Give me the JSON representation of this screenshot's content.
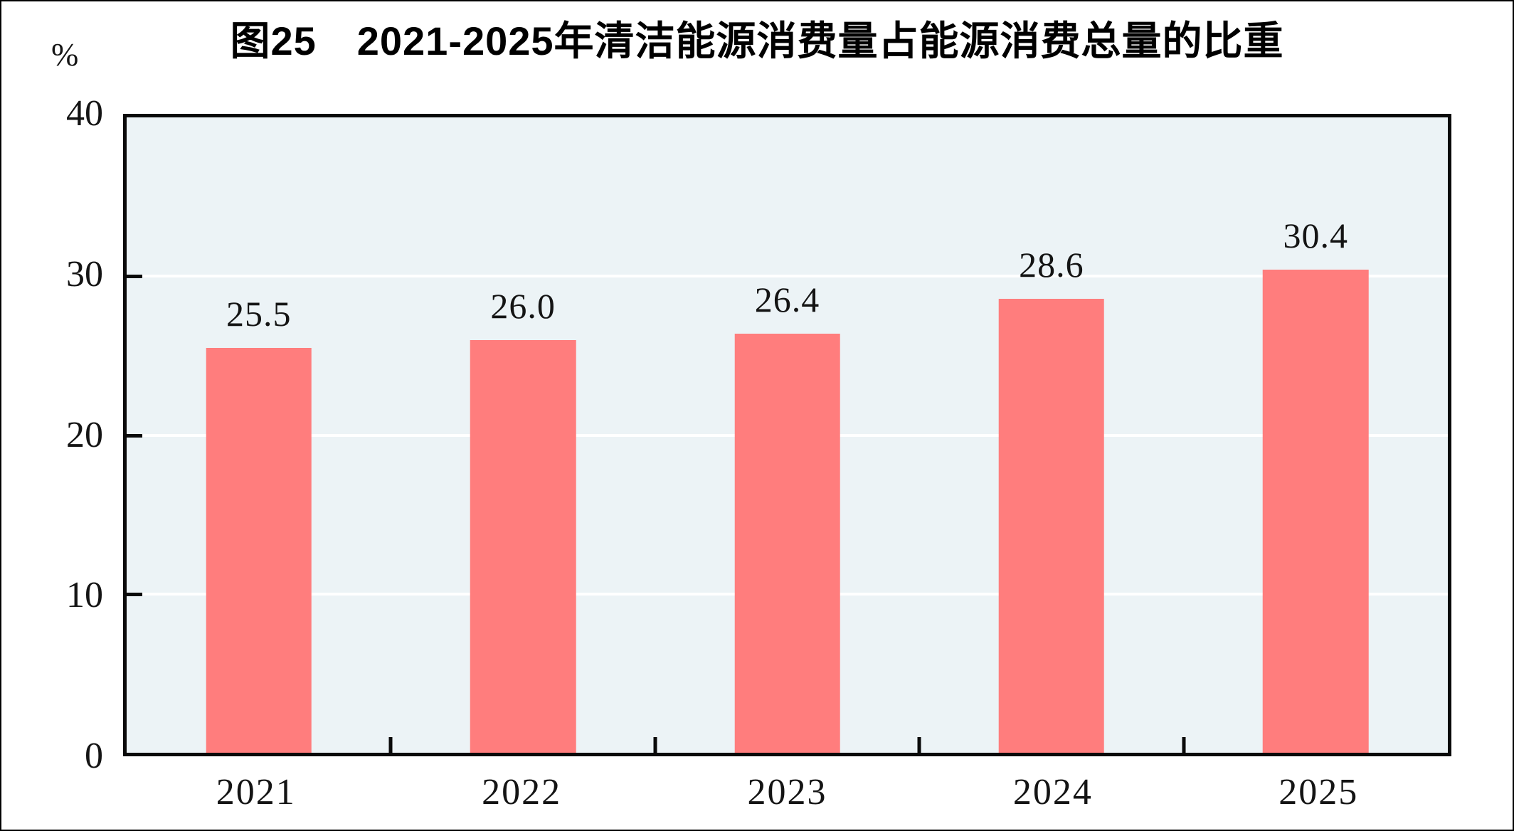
{
  "chart_data": {
    "type": "bar",
    "title": "图25　2021-2025年清洁能源消费量占能源消费总量的比重",
    "unit_label": "%",
    "categories": [
      "2021",
      "2022",
      "2023",
      "2024",
      "2025"
    ],
    "values": [
      25.5,
      26.0,
      26.4,
      28.6,
      30.4
    ],
    "value_labels": [
      "25.5",
      "26.0",
      "26.4",
      "28.6",
      "30.4"
    ],
    "xlabel": "",
    "ylabel": "%",
    "ylim": [
      0,
      40
    ],
    "y_ticks": [
      0,
      10,
      20,
      30,
      40
    ],
    "gridline_values": [
      10,
      20,
      30
    ],
    "grid": "horizontal",
    "legend_position": "none",
    "colors": {
      "bar": "#FF7D7D",
      "plot_background": "#ECF3F6",
      "axis_frame": "#0A0A0A",
      "gridline": "#FFFFFF",
      "text": "#141414"
    }
  }
}
